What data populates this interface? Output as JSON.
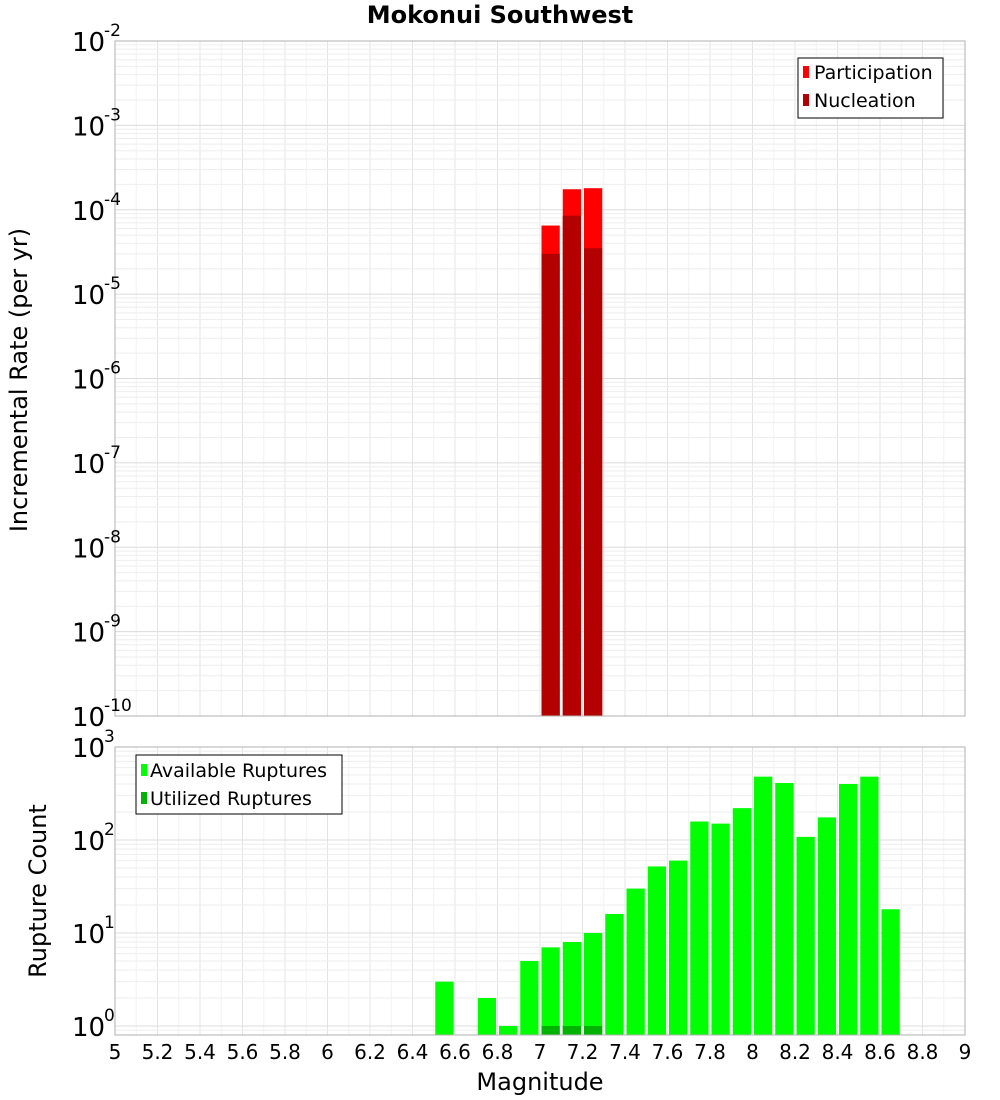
{
  "chart_data": [
    {
      "type": "bar",
      "title": "Mokonui Southwest",
      "xlabel": "Magnitude",
      "ylabel": "Incremental Rate (per yr)",
      "yscale": "log",
      "xlim": [
        5,
        9
      ],
      "ylim": [
        1e-10,
        0.01
      ],
      "ytick_base": "10",
      "yticks": [
        {
          "value": 1e-10,
          "exp": "-10"
        },
        {
          "value": 1e-09,
          "exp": "-9"
        },
        {
          "value": 1e-08,
          "exp": "-8"
        },
        {
          "value": 1e-07,
          "exp": "-7"
        },
        {
          "value": 1e-06,
          "exp": "-6"
        },
        {
          "value": 1e-05,
          "exp": "-5"
        },
        {
          "value": 0.0001,
          "exp": "-4"
        },
        {
          "value": 0.001,
          "exp": "-3"
        },
        {
          "value": 0.01,
          "exp": "-2"
        }
      ],
      "bin_width": 0.1,
      "legend_position": "top-right",
      "series": [
        {
          "name": "Participation",
          "color": "#ff0000",
          "x": [
            7.05,
            7.15,
            7.25
          ],
          "values": [
            6.5e-05,
            0.000175,
            0.00018
          ]
        },
        {
          "name": "Nucleation",
          "color": "#b30000",
          "x": [
            7.05,
            7.15,
            7.25
          ],
          "values": [
            3e-05,
            8.5e-05,
            3.5e-05
          ]
        }
      ]
    },
    {
      "type": "bar",
      "title": "",
      "xlabel": "Magnitude",
      "ylabel": "Rupture Count",
      "yscale": "log",
      "xlim": [
        5,
        9
      ],
      "ylim": [
        0.8,
        1000
      ],
      "ytick_base": "10",
      "yticks": [
        {
          "value": 1,
          "exp": "0"
        },
        {
          "value": 10,
          "exp": "1"
        },
        {
          "value": 100,
          "exp": "2"
        },
        {
          "value": 1000,
          "exp": "3"
        }
      ],
      "xticks": [
        "5",
        "5.2",
        "5.4",
        "5.6",
        "5.8",
        "6",
        "6.2",
        "6.4",
        "6.6",
        "6.8",
        "7",
        "7.2",
        "7.4",
        "7.6",
        "7.8",
        "8",
        "8.2",
        "8.4",
        "8.6",
        "8.8",
        "9"
      ],
      "bin_width": 0.1,
      "legend_position": "top-left",
      "series": [
        {
          "name": "Available Ruptures",
          "color": "#00ff00",
          "x": [
            6.55,
            6.75,
            6.85,
            6.95,
            7.05,
            7.15,
            7.25,
            7.35,
            7.45,
            7.55,
            7.65,
            7.75,
            7.85,
            7.95,
            8.05,
            8.15,
            8.25,
            8.35,
            8.45,
            8.55,
            8.65
          ],
          "values": [
            3,
            2,
            1,
            5,
            7,
            8,
            10,
            16,
            30,
            52,
            60,
            158,
            150,
            220,
            480,
            410,
            108,
            175,
            400,
            480,
            18
          ]
        },
        {
          "name": "Utilized Ruptures",
          "color": "#00b300",
          "x": [
            7.05,
            7.15,
            7.25
          ],
          "values": [
            1,
            1,
            1
          ]
        }
      ]
    }
  ]
}
